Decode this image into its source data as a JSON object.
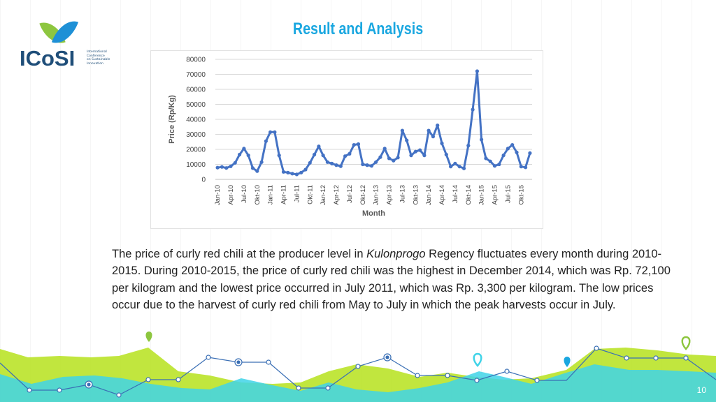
{
  "header": {
    "title": "Result and Analysis",
    "logo": {
      "name": "ICoSI",
      "lines": [
        "International",
        "Conference",
        "on Sustainable",
        "Innovation"
      ]
    }
  },
  "description": {
    "part1": "The price of curly red chili at the producer level in ",
    "emphasis": "Kulonprogo",
    "part2": " Regency fluctuates every month during 2010-2015. During 2010-2015, the price of curly red chili was the highest in December 2014, which was Rp. 72,100 per kilogram and the lowest price occurred in July 2011, which was Rp. 3,300 per kilogram. The low prices occur due to the harvest of curly red chili from May to July in which the peak harvests occur in July."
  },
  "page_number": "10",
  "colors": {
    "title": "#1aa7e0",
    "series": "#4472c4",
    "footer_lime": "#b6e21c",
    "footer_cyan": "#3fd3e8",
    "footer_line": "#3a6fb5"
  },
  "chart_data": {
    "type": "line",
    "title": "",
    "xlabel": "Month",
    "ylabel": "Price (Rp/Kg)",
    "ylim": [
      0,
      80000
    ],
    "y_ticks": [
      "0",
      "10000",
      "20000",
      "30000",
      "40000",
      "50000",
      "60000",
      "70000",
      "80000"
    ],
    "grid": true,
    "x_tick_labels": [
      "Jan-10",
      "Apr-10",
      "Jul-10",
      "Okt-10",
      "Jan-11",
      "Apr-11",
      "Jul-11",
      "Okt-11",
      "Jan-12",
      "Apr-12",
      "Jul-12",
      "Okt-12",
      "Jan-13",
      "Apr-13",
      "Jul-13",
      "Okt-13",
      "Jan-14",
      "Apr-14",
      "Jul-14",
      "Okt-14",
      "Jan-15",
      "Apr-15",
      "Jul-15",
      "Okt-15"
    ],
    "x_tick_every": 3,
    "series": [
      {
        "values": [
          7800,
          8300,
          7600,
          8700,
          11000,
          16500,
          20500,
          16000,
          7500,
          5500,
          11500,
          25500,
          31500,
          31500,
          16000,
          5000,
          4500,
          3800,
          3300,
          4500,
          6500,
          11000,
          16500,
          22000,
          16000,
          11500,
          10500,
          9500,
          8800,
          15500,
          17000,
          23000,
          23500,
          10000,
          9500,
          9000,
          11500,
          14800,
          20500,
          14000,
          12500,
          14500,
          32500,
          26000,
          16000,
          18500,
          19500,
          16000,
          32500,
          28500,
          36000,
          24000,
          16500,
          8500,
          10500,
          8500,
          7300,
          22500,
          46500,
          72100,
          26500,
          14000,
          12000,
          9000,
          10000,
          16000,
          20500,
          23000,
          18000,
          8500,
          8000,
          17500
        ]
      }
    ]
  }
}
